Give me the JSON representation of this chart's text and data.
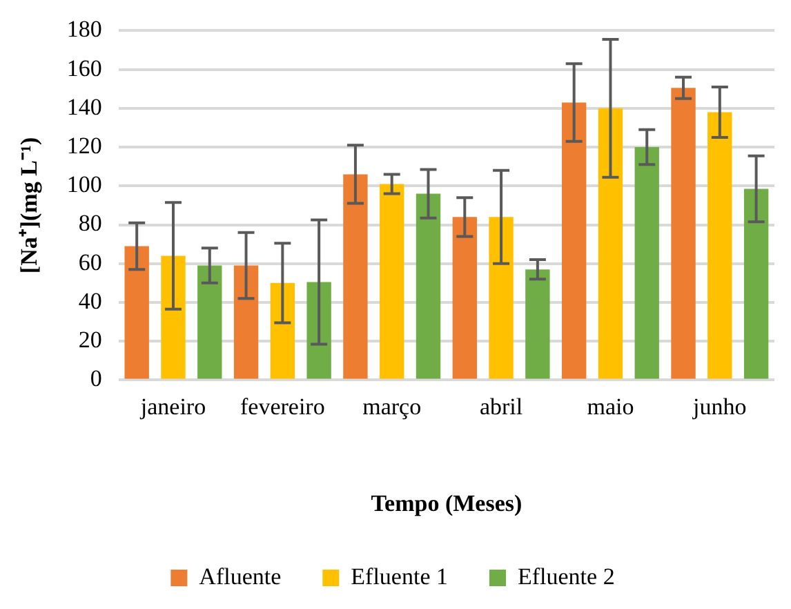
{
  "chart_data": {
    "type": "bar",
    "xlabel": "Tempo (Meses)",
    "ylabel": "[Na⁺](mg L⁻¹)",
    "categories": [
      "janeiro",
      "fevereiro",
      "março",
      "abril",
      "maio",
      "junho"
    ],
    "series": [
      {
        "name": "Afluente",
        "color": "#ed7d31",
        "values": [
          69,
          59,
          106,
          84,
          143,
          150.5
        ],
        "errors": [
          12,
          17,
          15,
          10,
          20,
          5.5
        ]
      },
      {
        "name": "Efluente 1",
        "color": "#ffc000",
        "values": [
          64,
          50,
          101,
          84,
          140,
          138
        ],
        "errors": [
          27.5,
          20.5,
          5,
          24,
          35.5,
          13
        ]
      },
      {
        "name": "Efluente 2",
        "color": "#70ad47",
        "values": [
          59,
          50.5,
          96,
          57,
          120,
          98.5
        ],
        "errors": [
          9,
          32,
          12.5,
          5,
          9,
          17
        ]
      }
    ],
    "ylim": [
      0,
      180
    ],
    "yticks": [
      0,
      20,
      40,
      60,
      80,
      100,
      120,
      140,
      160,
      180
    ],
    "grid": "y",
    "legend": "bottom"
  }
}
